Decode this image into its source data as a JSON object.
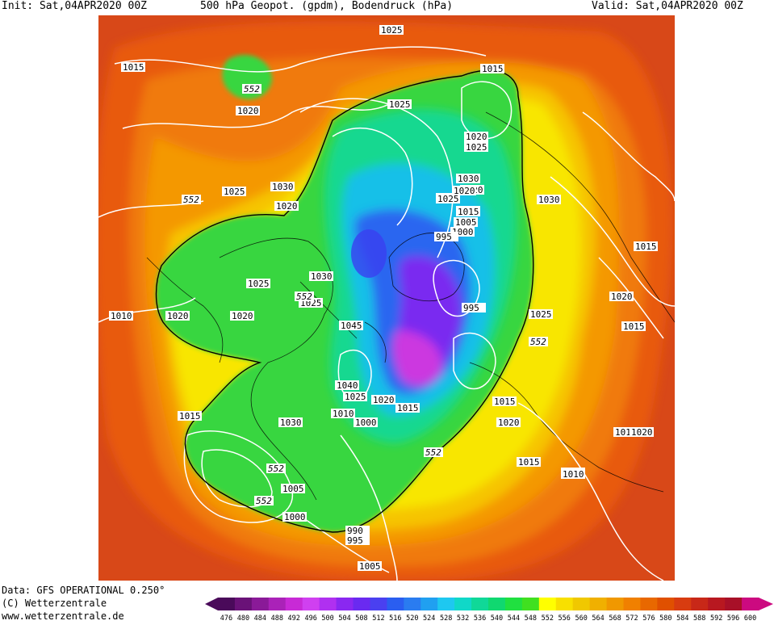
{
  "header": {
    "init": "Init: Sat,04APR2020 00Z",
    "title": "500 hPa Geopot. (gpdm), Bodendruck (hPa)",
    "valid": "Valid: Sat,04APR2020 00Z"
  },
  "footer": {
    "data_source": "Data: GFS OPERATIONAL 0.250°",
    "copyright": "(C) Wetterzentrale",
    "url": "www.wetterzentrale.de"
  },
  "legend": {
    "levels": [
      "476",
      "480",
      "484",
      "488",
      "492",
      "496",
      "500",
      "504",
      "508",
      "512",
      "516",
      "520",
      "524",
      "528",
      "532",
      "536",
      "540",
      "544",
      "548",
      "552",
      "556",
      "560",
      "564",
      "568",
      "572",
      "576",
      "580",
      "584",
      "588",
      "592",
      "596",
      "600"
    ],
    "colors": [
      "#4a0a5a",
      "#6a1278",
      "#8a1a98",
      "#aa22b8",
      "#c82ad6",
      "#d040f0",
      "#b030f0",
      "#8a28f0",
      "#6a2af0",
      "#4a40f0",
      "#2a5ef0",
      "#2a7cf0",
      "#20a0f0",
      "#1ec8f0",
      "#10d8c8",
      "#10d898",
      "#10d870",
      "#20e040",
      "#40e020",
      "#ffff00",
      "#f8e000",
      "#f0c800",
      "#f0b000",
      "#f09800",
      "#f08000",
      "#e86800",
      "#e05000",
      "#d83c10",
      "#c82818",
      "#b81820",
      "#a81028",
      "#cc0a80"
    ]
  },
  "map": {
    "height_contour_label": "552",
    "height_labels": [
      "552",
      "552",
      "552",
      "552",
      "552",
      "552",
      "552"
    ],
    "pressure_labels": [
      "1025",
      "1015",
      "1015",
      "1020",
      "1025",
      "1020",
      "1020",
      "1025",
      "1030",
      "1020",
      "1030",
      "1025",
      "1020",
      "1025",
      "1015",
      "1015",
      "1005",
      "1000",
      "995",
      "1030",
      "1020",
      "1025",
      "1025",
      "1020",
      "1010",
      "1020",
      "1025",
      "1015",
      "995",
      "1030",
      "1045",
      "1025",
      "1015",
      "1020",
      "1040",
      "1025",
      "1020",
      "1010",
      "1015",
      "1000",
      "1015",
      "1020",
      "1015",
      "1030",
      "1015",
      "1010",
      "1010",
      "1005",
      "1000",
      "990",
      "995",
      "1005",
      "1015",
      "1020"
    ]
  }
}
